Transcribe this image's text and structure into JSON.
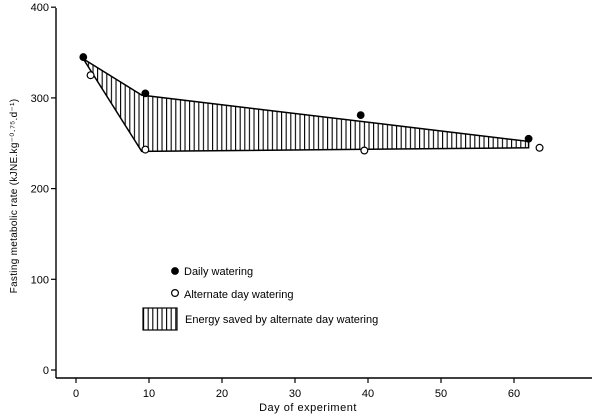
{
  "chart_data": {
    "type": "line",
    "xlabel": "Day of experiment",
    "ylabel": "Fasting metabolic rate (kJNE.kg⁻⁰·⁷⁵.d⁻¹)",
    "xlim": [
      -5,
      70
    ],
    "ylim": [
      0,
      400
    ],
    "x_ticks": [
      0,
      10,
      20,
      30,
      40,
      50,
      60
    ],
    "x_tick_labels": [
      "0",
      "10",
      "20",
      "30",
      "40",
      "50",
      "60"
    ],
    "y_ticks": [
      0,
      100,
      200,
      300,
      400
    ],
    "y_tick_labels": [
      "0",
      "100",
      "200",
      "300",
      "400"
    ],
    "grid": false,
    "legend_position": "bottom-left",
    "series": [
      {
        "name": "Daily watering",
        "marker": "filled-circle",
        "x": [
          1,
          9.5,
          39,
          62
        ],
        "y": [
          345,
          305,
          281,
          255
        ]
      },
      {
        "name": "Alternate day watering",
        "marker": "open-circle",
        "x": [
          2,
          9.5,
          39.5,
          63.5
        ],
        "y": [
          325,
          243,
          242,
          245
        ]
      }
    ],
    "shaded_region": {
      "label": "Energy saved by alternate day watering",
      "pattern": "vertical-hatch",
      "upper": {
        "x": [
          1,
          9,
          62
        ],
        "y": [
          343,
          303,
          252
        ]
      },
      "lower": {
        "x": [
          1,
          9,
          62
        ],
        "y": [
          343,
          241,
          245
        ]
      }
    }
  }
}
